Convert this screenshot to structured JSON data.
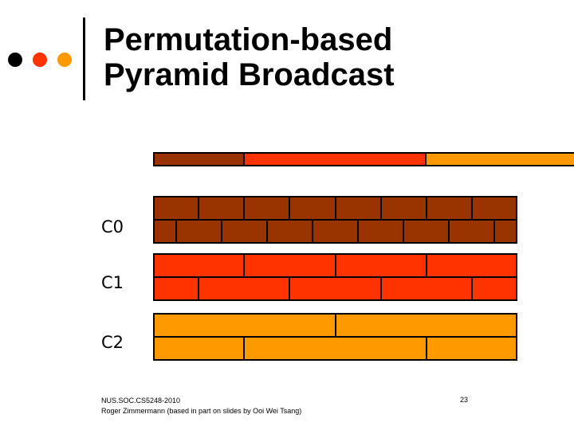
{
  "title": {
    "line1": "Permutation-based",
    "line2": "Pyramid Broadcast"
  },
  "colors": {
    "c0": "#993300",
    "c1": "#ff3300",
    "c2": "#ff9900",
    "dot1": "#000000",
    "dot2": "#ff3300",
    "dot3": "#ff9900"
  },
  "channels": [
    {
      "label": "C0",
      "color": "#993300",
      "segments_per_row": 8
    },
    {
      "label": "C1",
      "color": "#ff3300",
      "segments_per_row": 4
    },
    {
      "label": "C2",
      "color": "#ff9900",
      "segments_per_row": 2
    }
  ],
  "footer": {
    "line1": "NUS.SOC.CS5248-2010",
    "line2": "Roger Zimmermann (based in part on slides by Ooi Wei Tsang)",
    "page": "23"
  }
}
